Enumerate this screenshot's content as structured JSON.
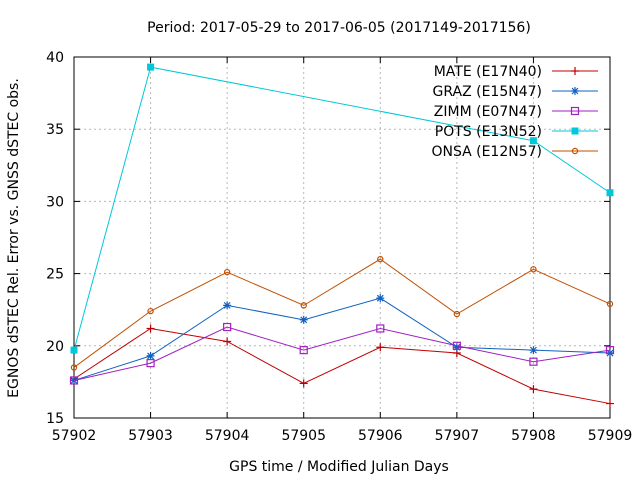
{
  "chart_data": {
    "type": "line",
    "title": "Period: 2017-05-29 to 2017-06-05 (2017149-2017156)",
    "xlabel": "GPS time / Modified Julian Days",
    "ylabel": "EGNOS dSTEC Rel. Error vs. GNSS dSTEC obs.",
    "xlim": [
      57902,
      57909
    ],
    "ylim": [
      15,
      40
    ],
    "x": [
      57902,
      57903,
      57904,
      57905,
      57906,
      57907,
      57908,
      57909
    ],
    "x_ticks": [
      "57902",
      "57903",
      "57904",
      "57905",
      "57906",
      "57907",
      "57908",
      "57909"
    ],
    "y_ticks": [
      "15",
      "20",
      "25",
      "30",
      "35",
      "40"
    ],
    "grid": "dashed",
    "legend_position": "top-right",
    "series": [
      {
        "name": "MATE (E17N40)",
        "color": "#c00000",
        "marker": "plus",
        "values": [
          17.7,
          21.2,
          20.3,
          17.4,
          19.9,
          19.5,
          17.0,
          16.0
        ]
      },
      {
        "name": "GRAZ (E15N47)",
        "color": "#1060c0",
        "marker": "star",
        "values": [
          17.6,
          19.3,
          22.8,
          21.8,
          23.3,
          19.9,
          19.7,
          19.5
        ]
      },
      {
        "name": "ZIMM (E07N47)",
        "color": "#a020c0",
        "marker": "square-open",
        "values": [
          17.6,
          18.8,
          21.3,
          19.7,
          21.2,
          20.0,
          18.9,
          19.7
        ]
      },
      {
        "name": "POTS (E13N52)",
        "color": "#00c8d8",
        "marker": "square-filled",
        "values": [
          19.7,
          39.3,
          null,
          null,
          null,
          null,
          34.2,
          30.6
        ]
      },
      {
        "name": "ONSA (E12N57)",
        "color": "#c05000",
        "marker": "circle-open",
        "values": [
          18.5,
          22.4,
          25.1,
          22.8,
          26.0,
          22.2,
          25.3,
          22.9
        ]
      }
    ]
  }
}
